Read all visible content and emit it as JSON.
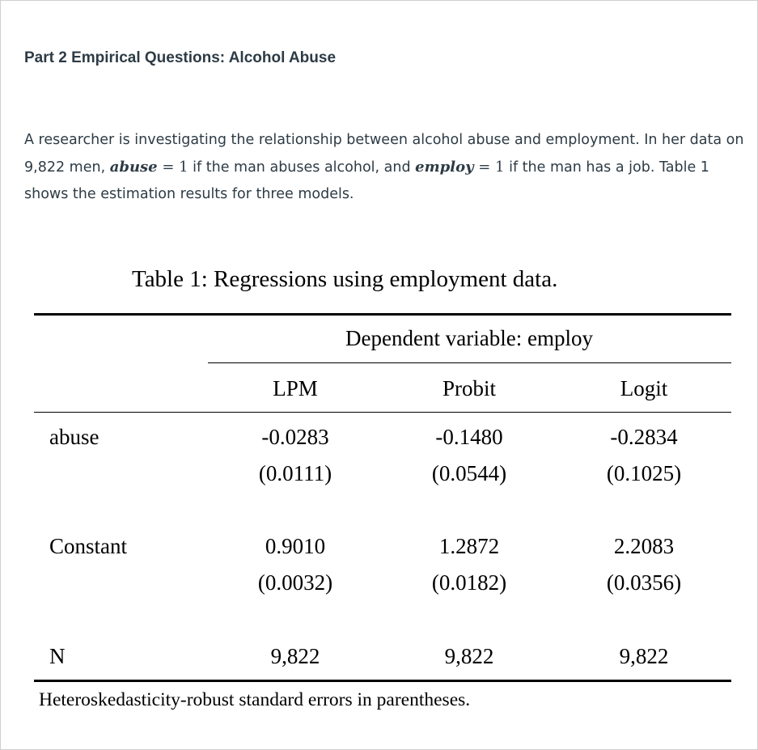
{
  "heading": "Part 2 Empirical Questions: Alcohol Abuse",
  "paragraph": {
    "text_1": "A researcher is investigating the relationship between alcohol abuse and employment. In her data on 9,822 men, ",
    "var_abuse": "abuse",
    "eq_1": " = 1",
    "text_2": " if the man abuses alcohol, and ",
    "var_employ": "employ",
    "eq_2": " = 1",
    "text_3": " if the man has a job. Table 1 shows the estimation results for three models."
  },
  "table": {
    "caption": "Table 1: Regressions using employment data.",
    "dependent_label": "Dependent variable: employ",
    "columns": [
      "LPM",
      "Probit",
      "Logit"
    ],
    "rows": [
      {
        "label": "abuse",
        "coefs": [
          "-0.0283",
          "-0.1480",
          "-0.2834"
        ],
        "ses": [
          "(0.0111)",
          "(0.0544)",
          "(0.1025)"
        ]
      },
      {
        "label": "Constant",
        "coefs": [
          "0.9010",
          "1.2872",
          "2.2083"
        ],
        "ses": [
          "(0.0032)",
          "(0.0182)",
          "(0.0356)"
        ]
      }
    ],
    "n_row": {
      "label": "N",
      "values": [
        "9,822",
        "9,822",
        "9,822"
      ]
    },
    "note": "Heteroskedasticity-robust standard errors in parentheses."
  }
}
